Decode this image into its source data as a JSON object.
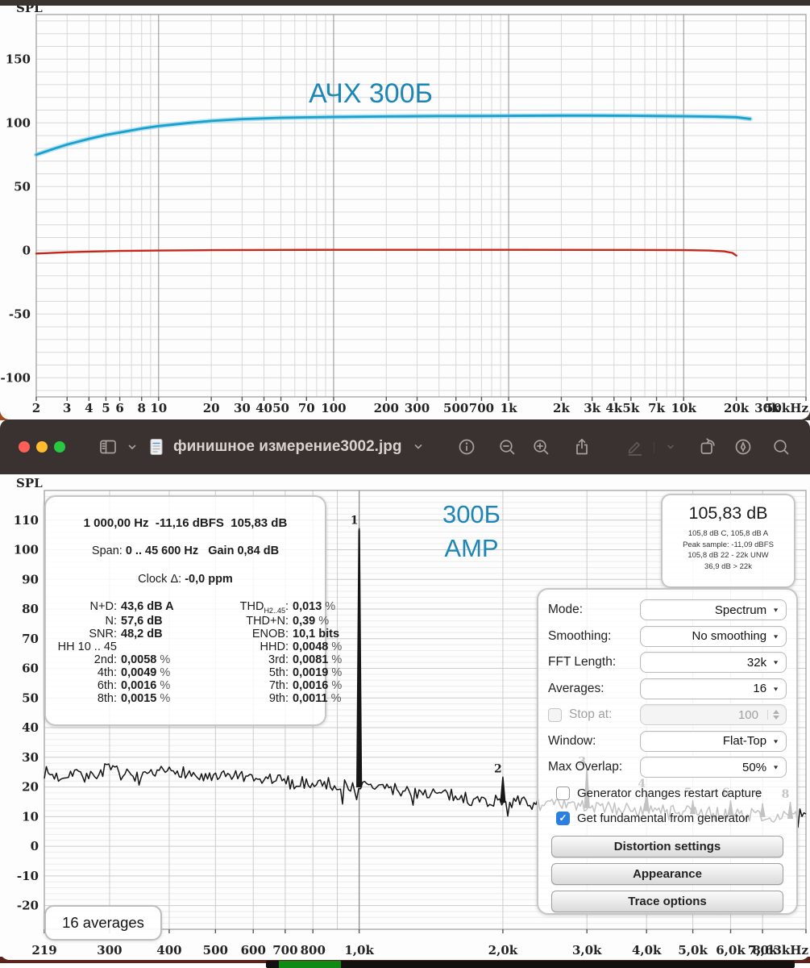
{
  "toolbar": {
    "traffic_lights": [
      "#ff5f57",
      "#febc2e",
      "#28c840"
    ],
    "filename": "финишное измерение3002.jpg",
    "icons": [
      "sidebar-icon",
      "chevron-down-icon",
      "document-icon",
      "info-icon",
      "zoom-out-icon",
      "zoom-in-icon",
      "share-icon",
      "markup-pencil-icon",
      "chevron-down-icon",
      "rotate-icon",
      "pen-circle-icon",
      "search-icon"
    ]
  },
  "measurement_panel": {
    "line1": "1 000,00 Hz  -11,16 dBFS  105,83 dB",
    "line2": [
      {
        "t": "Span: "
      },
      {
        "t": "0 .. 45 600 Hz",
        "b": true
      },
      {
        "t": "   Gain ",
        "b": true
      },
      {
        "t": "0,84 dB",
        "b": true
      }
    ],
    "line3": [
      {
        "t": "Clock Δ: "
      },
      {
        "t": "-0,0 ppm",
        "b": true
      }
    ],
    "rows": [
      {
        "left": {
          "label": "N+D:",
          "value": "43,6 dB A"
        },
        "right": {
          "label": "THD",
          "sub": "H2..45",
          "value": "0,013",
          "unit": "%"
        }
      },
      {
        "left": {
          "label": "N:",
          "value": "57,6 dB"
        },
        "right": {
          "label": "THD+N:",
          "value": "0,39",
          "unit": "%"
        }
      },
      {
        "left": {
          "label": "SNR:",
          "value": "48,2 dB"
        },
        "right": {
          "label": "ENOB:",
          "value": "10,1 bits"
        }
      },
      {
        "left": {
          "label": "HH 10 .. 45",
          "value": ""
        },
        "right": {
          "label": "HHD:",
          "value": "0,0048",
          "unit": "%"
        }
      },
      {
        "left": {
          "label": "2nd:",
          "value": "0,0058",
          "unit": "%"
        },
        "right": {
          "label": "3rd:",
          "value": "0,0081",
          "unit": "%"
        }
      },
      {
        "left": {
          "label": "4th:",
          "value": "0,0049",
          "unit": "%"
        },
        "right": {
          "label": "5th:",
          "value": "0,0019",
          "unit": "%"
        }
      },
      {
        "left": {
          "label": "6th:",
          "value": "0,0016",
          "unit": "%"
        },
        "right": {
          "label": "7th:",
          "value": "0,0016",
          "unit": "%"
        }
      },
      {
        "left": {
          "label": "8th:",
          "value": "0,0015",
          "unit": "%"
        },
        "right": {
          "label": "9th:",
          "value": "0,0011",
          "unit": "%"
        }
      }
    ]
  },
  "level_panel": {
    "value": "105,83 dB",
    "details": [
      "105,8 dB C, 105,8 dB A",
      "Peak sample: -11,09 dBFS",
      "105,8 dB 22 - 22k UNW",
      "36,9 dB > 22k"
    ]
  },
  "settings_panel": {
    "selects": [
      {
        "label": "Mode:",
        "value": "Spectrum"
      },
      {
        "label": "Smoothing:",
        "value": "No smoothing"
      },
      {
        "label": "FFT Length:",
        "value": "32k"
      },
      {
        "label": "Averages:",
        "value": "16"
      }
    ],
    "stop_at": {
      "label": "Stop at:",
      "value": "100",
      "enabled": false
    },
    "selects2": [
      {
        "label": "Window:",
        "value": "Flat-Top"
      },
      {
        "label": "Max Overlap:",
        "value": "50%"
      }
    ],
    "checkboxes": [
      {
        "label": "Generator changes restart capture",
        "checked": false
      },
      {
        "label": "Get fundamental from generator",
        "checked": true
      }
    ],
    "buttons": [
      "Distortion settings",
      "Appearance",
      "Trace options"
    ],
    "accent": "#2a7fe0"
  },
  "averages_box": {
    "label": "16 averages"
  },
  "chart_data": [
    {
      "id": "frequency-response",
      "type": "line",
      "xscale": "log",
      "title": "АЧХ 300Б",
      "corner_label": "SPL",
      "xlim": [
        2,
        50000
      ],
      "ylim": [
        -115,
        185
      ],
      "x_ticks": [
        [
          2,
          "2"
        ],
        [
          3,
          "3"
        ],
        [
          4,
          "4"
        ],
        [
          5,
          "5"
        ],
        [
          6,
          "6"
        ],
        [
          8,
          "8"
        ],
        [
          10,
          "10"
        ],
        [
          20,
          "20"
        ],
        [
          30,
          "30"
        ],
        [
          40,
          "40"
        ],
        [
          50,
          "50"
        ],
        [
          70,
          "70"
        ],
        [
          100,
          "100"
        ],
        [
          200,
          "200"
        ],
        [
          300,
          "300"
        ],
        [
          500,
          "500"
        ],
        [
          700,
          "700"
        ],
        [
          1000,
          "1k"
        ],
        [
          2000,
          "2k"
        ],
        [
          3000,
          "3k"
        ],
        [
          4000,
          "4k"
        ],
        [
          5000,
          "5k"
        ],
        [
          7000,
          "7k"
        ],
        [
          10000,
          "10k"
        ],
        [
          20000,
          "20k"
        ],
        [
          30000,
          "30k"
        ],
        [
          50000,
          "50kHz"
        ]
      ],
      "y_ticks": [
        150,
        100,
        50,
        0,
        -50,
        -100
      ],
      "grid": true,
      "series": [
        {
          "name": "spl-response-300b",
          "color": "#19a0cb",
          "points": [
            [
              2,
              75
            ],
            [
              2.5,
              79.5
            ],
            [
              3,
              83
            ],
            [
              4,
              87.5
            ],
            [
              5,
              90.5
            ],
            [
              6,
              92.5
            ],
            [
              8,
              95.5
            ],
            [
              10,
              97.5
            ],
            [
              15,
              100
            ],
            [
              20,
              101.5
            ],
            [
              30,
              103
            ],
            [
              50,
              104
            ],
            [
              70,
              104.3
            ],
            [
              100,
              104.6
            ],
            [
              200,
              105
            ],
            [
              400,
              105.3
            ],
            [
              700,
              105.4
            ],
            [
              1000,
              105.5
            ],
            [
              2000,
              105.7
            ],
            [
              3000,
              105.7
            ],
            [
              5000,
              105.6
            ],
            [
              7000,
              105.4
            ],
            [
              10000,
              105.2
            ],
            [
              15000,
              104.9
            ],
            [
              20000,
              104.4
            ],
            [
              24000,
              103.1
            ]
          ]
        },
        {
          "name": "reference-trace",
          "color": "#c5271b",
          "points": [
            [
              2,
              -2.5
            ],
            [
              3,
              -1.5
            ],
            [
              4,
              -1
            ],
            [
              6,
              -0.5
            ],
            [
              10,
              -0.2
            ],
            [
              20,
              0.1
            ],
            [
              50,
              0.3
            ],
            [
              100,
              0.4
            ],
            [
              1000,
              0.4
            ],
            [
              5000,
              0.3
            ],
            [
              10000,
              0.1
            ],
            [
              14000,
              -0.2
            ],
            [
              17000,
              -0.8
            ],
            [
              19000,
              -2
            ],
            [
              20000,
              -4.2
            ]
          ]
        }
      ]
    },
    {
      "id": "spectrum",
      "type": "line",
      "xscale": "log",
      "title_lines": [
        "300Б",
        "AMP"
      ],
      "corner_label": "SPL",
      "xlim": [
        219,
        8630
      ],
      "ylim": [
        -28,
        120
      ],
      "x_ticks": [
        [
          219,
          "219"
        ],
        [
          300,
          "300"
        ],
        [
          400,
          "400"
        ],
        [
          500,
          "500"
        ],
        [
          600,
          "600"
        ],
        [
          700,
          "700"
        ],
        [
          800,
          "800"
        ],
        [
          1000,
          "1,0k"
        ],
        [
          2000,
          "2,0k"
        ],
        [
          3000,
          "3,0k"
        ],
        [
          4000,
          "4,0k"
        ],
        [
          5000,
          "5,0k"
        ],
        [
          6000,
          "6,0k"
        ],
        [
          7000,
          "7,0k"
        ],
        [
          8630,
          "8,63kHz"
        ]
      ],
      "y_ticks": [
        110,
        100,
        90,
        80,
        70,
        60,
        50,
        40,
        30,
        20,
        10,
        0,
        -10,
        -20
      ],
      "grid_extra_hz": [
        900
      ],
      "cursor_hz": 1000,
      "fundamental": {
        "hz": 1000,
        "dbfs": -11.16,
        "spl_db": 105.83
      },
      "noise_floor": [
        [
          219,
          25
        ],
        [
          235,
          23.2
        ],
        [
          252,
          25.6
        ],
        [
          272,
          23.0
        ],
        [
          295,
          26.2
        ],
        [
          320,
          24.3
        ],
        [
          350,
          22.6
        ],
        [
          385,
          24.8
        ],
        [
          420,
          25.6
        ],
        [
          460,
          23.4
        ],
        [
          500,
          22.6
        ],
        [
          545,
          24.2
        ],
        [
          600,
          21.8
        ],
        [
          660,
          22.8
        ],
        [
          730,
          21.2
        ],
        [
          810,
          21.6
        ],
        [
          900,
          20.6
        ],
        [
          1000,
          20.4
        ],
        [
          1120,
          19.8
        ],
        [
          1260,
          18.6
        ],
        [
          1420,
          18.0
        ],
        [
          1600,
          16.8
        ],
        [
          1800,
          15.4
        ],
        [
          2050,
          15.2
        ],
        [
          2300,
          14.4
        ],
        [
          2600,
          13.8
        ],
        [
          3000,
          13.4
        ],
        [
          3500,
          12.6
        ],
        [
          4000,
          12.4
        ],
        [
          4600,
          11.6
        ],
        [
          5300,
          11.2
        ],
        [
          6100,
          11.0
        ],
        [
          7000,
          10.4
        ],
        [
          8000,
          9.8
        ],
        [
          8630,
          11.5
        ]
      ],
      "peaks": [
        {
          "n": "1",
          "hz": 1000,
          "top": 107.3
        },
        {
          "n": "2",
          "hz": 2000,
          "top": 23.5
        },
        {
          "n": "3",
          "hz": 3000,
          "top": 26.0
        },
        {
          "n": "4",
          "hz": 4000,
          "top": 18.5
        },
        {
          "n": "5",
          "hz": 5000,
          "top": 15.5
        },
        {
          "n": "6",
          "hz": 6000,
          "top": 15.5
        },
        {
          "n": "7",
          "hz": 7000,
          "top": 14.5
        },
        {
          "n": "8",
          "hz": 8000,
          "top": 15.0
        }
      ]
    }
  ]
}
